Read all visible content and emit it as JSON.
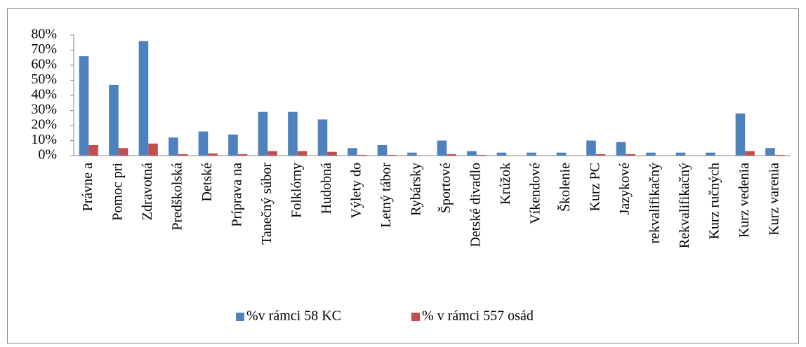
{
  "chart_data": {
    "type": "bar",
    "categories": [
      "Právne a",
      "Pomoc pri",
      "Zdravotná",
      "Predškolská",
      "Detské",
      "Príprava na",
      "Tanečný súbor",
      "Folklórny",
      "Hudobná",
      "Výlety do",
      "Letný tábor",
      "Rybársky",
      "Športové",
      "Detské divadlo",
      "Krúžok",
      "Víkendové",
      "Školenie",
      "Kurz PC",
      "Jazykové",
      "rekvalifikačný",
      "Rekvalifikačný",
      "Kurz ručných",
      "Kurz vedenia",
      "Kurz varenia"
    ],
    "series": [
      {
        "name": "%v rámci 58 KC",
        "color": "#4f81bd",
        "values": [
          66,
          47,
          76,
          12,
          16,
          14,
          29,
          29,
          24,
          5,
          7,
          2,
          10,
          3,
          2,
          2,
          2,
          10,
          9,
          2,
          2,
          2,
          28,
          5
        ]
      },
      {
        "name": "% v rámci 557 osád",
        "color": "#c0504d",
        "values": [
          7,
          5,
          8,
          1,
          1.5,
          1,
          3,
          3,
          2.5,
          0.5,
          0.5,
          0,
          1,
          0.5,
          0,
          0,
          0,
          1,
          1,
          0,
          0,
          0,
          3,
          0.5
        ]
      }
    ],
    "ylim": [
      0,
      80
    ],
    "yticks": [
      {
        "value": 0,
        "label": "0%"
      },
      {
        "value": 10,
        "label": "10%"
      },
      {
        "value": 20,
        "label": "20%"
      },
      {
        "value": 30,
        "label": "30%"
      },
      {
        "value": 40,
        "label": "40%"
      },
      {
        "value": 50,
        "label": "50%"
      },
      {
        "value": 60,
        "label": "60%"
      },
      {
        "value": 70,
        "label": "70%"
      },
      {
        "value": 80,
        "label": "80%"
      }
    ],
    "grid": false,
    "legend": "bottom"
  }
}
